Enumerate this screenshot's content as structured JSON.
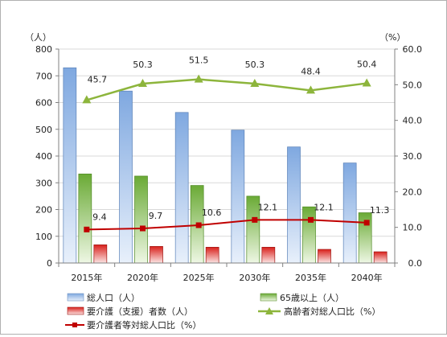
{
  "chart_data": {
    "type": "bar",
    "categories": [
      "2015年",
      "2020年",
      "2025年",
      "2030年",
      "2035年",
      "2040年"
    ],
    "left_axis": {
      "unit_label": "（人）",
      "ylim": [
        0,
        800
      ],
      "ticks": [
        "0",
        "100",
        "200",
        "300",
        "400",
        "500",
        "600",
        "700",
        "800"
      ]
    },
    "right_axis": {
      "unit_label": "（%）",
      "ylim": [
        0,
        60
      ],
      "ticks": [
        "0.0",
        "10.0",
        "20.0",
        "30.0",
        "40.0",
        "50.0",
        "60.0"
      ]
    },
    "series": [
      {
        "name": "総人口（人）",
        "kind": "bar",
        "axis": "left",
        "color": "#8db3e2",
        "values": [
          730,
          643,
          563,
          497,
          434,
          374
        ]
      },
      {
        "name": "65歳以上（人）",
        "kind": "bar",
        "axis": "left",
        "color": "#77b843",
        "values": [
          333,
          325,
          290,
          250,
          210,
          188
        ]
      },
      {
        "name": "要介護（支援）者数（人）",
        "kind": "bar",
        "axis": "left",
        "color": "#e0302a",
        "values": [
          68,
          62,
          59,
          59,
          51,
          42
        ]
      },
      {
        "name": "高齢者対総人口比（%）",
        "kind": "line",
        "axis": "right",
        "color": "#8db53c",
        "marker": "triangle",
        "values": [
          45.7,
          50.3,
          51.5,
          50.3,
          48.4,
          50.4
        ],
        "labels": [
          "45.7",
          "50.3",
          "51.5",
          "50.3",
          "48.4",
          "50.4"
        ]
      },
      {
        "name": "要介護者等対総人口比（%）",
        "kind": "line",
        "axis": "right",
        "color": "#c00000",
        "marker": "square",
        "values": [
          9.4,
          9.7,
          10.6,
          12.1,
          12.1,
          11.3
        ],
        "labels": [
          "9.4",
          "9.7",
          "10.6",
          "12.1",
          "12.1",
          "11.3"
        ]
      }
    ],
    "legend_position": "bottom"
  }
}
